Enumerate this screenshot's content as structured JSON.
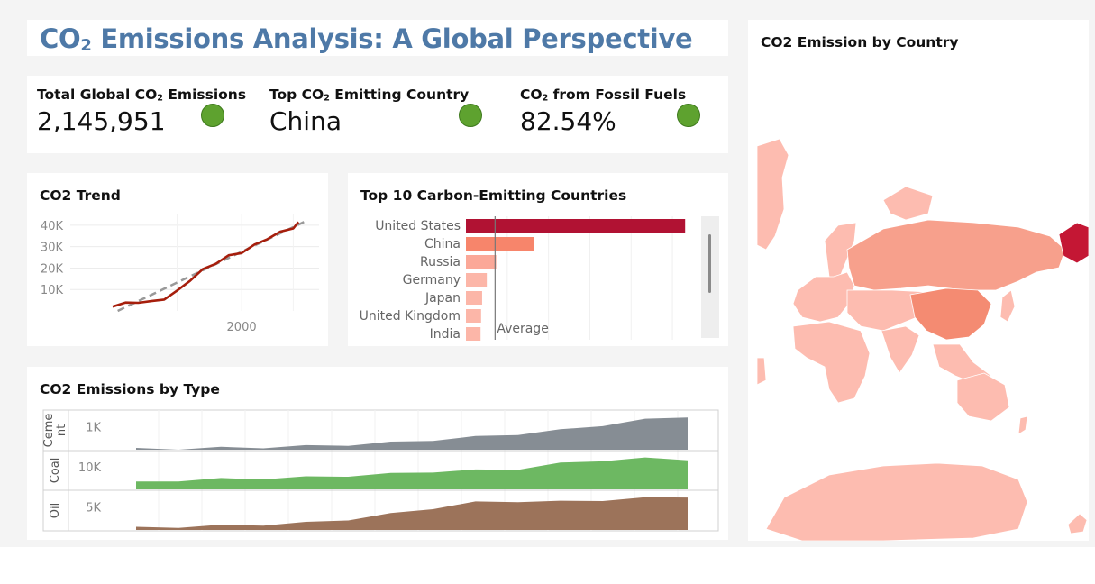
{
  "header": {
    "title_part1": "CO",
    "title_sub": "2",
    "title_part2": " Emissions Analysis: A Global Perspective"
  },
  "kpis": [
    {
      "label_pre": "Total Global CO",
      "label_sub": "2",
      "label_post": " Emissions",
      "value": "2,145,951",
      "status_color": "#5ea22f"
    },
    {
      "label_pre": "Top CO",
      "label_sub": "2",
      "label_post": " Emitting Country",
      "value": "China",
      "status_color": "#5ea22f"
    },
    {
      "label_pre": "CO",
      "label_sub": "2",
      "label_post": " from Fossil Fuels",
      "value": "82.54%",
      "status_color": "#5ea22f"
    }
  ],
  "trend": {
    "title": "CO2 Trend",
    "chart_data": {
      "type": "line",
      "y_ticks": [
        "40K",
        "30K",
        "20K",
        "10K"
      ],
      "x_ticks": [
        "2000"
      ],
      "series": [
        {
          "values_x": [
            1950,
            1955,
            1960,
            1965,
            1970,
            1975,
            1980,
            1985,
            1990,
            1995,
            2000,
            2005,
            2010,
            2015,
            2020,
            2022
          ],
          "values_y": [
            2500,
            3400,
            4300,
            4100,
            5800,
            9000,
            14500,
            19000,
            22500,
            25500,
            27500,
            30500,
            34000,
            36500,
            39000,
            41000
          ],
          "color": "#a61e0c"
        }
      ],
      "trendline": {
        "color": "#999999",
        "from": [
          1952,
          0
        ],
        "to": [
          2025,
          42000
        ]
      },
      "xlim": [
        1942,
        2030
      ],
      "ylim": [
        0,
        45000
      ]
    }
  },
  "top10": {
    "title": "Top 10 Carbon-Emitting Countries",
    "chart_data": {
      "type": "bar",
      "categories": [
        "United States",
        "China",
        "Russia",
        "Germany",
        "Japan",
        "United Kingdom",
        "India"
      ],
      "values": [
        420000,
        130000,
        58000,
        40000,
        31000,
        29000,
        28000
      ],
      "colors": [
        "#b11233",
        "#f7856b",
        "#fba898",
        "#fcb6a8",
        "#fcb6a8",
        "#fcb6a8",
        "#fcb6a8"
      ],
      "reference_line": {
        "label": "Average",
        "value": 80000
      },
      "xlim": [
        0,
        430000
      ]
    }
  },
  "by_type": {
    "title": "CO2 Emissions by Type",
    "chart_data": {
      "type": "area",
      "panels": [
        {
          "name": "Ceme nt",
          "tick": "1K",
          "color": "#868d94",
          "ymax": 1.0,
          "values": [
            0.02,
            0.03,
            0.05,
            0.07,
            0.1,
            0.14,
            0.2,
            0.28,
            0.36,
            0.45,
            0.55,
            0.7,
            0.85,
            0.95
          ]
        },
        {
          "name": "Coal",
          "tick": "10K",
          "color": "#6db862",
          "ymax": 1.0,
          "values": [
            0.2,
            0.26,
            0.3,
            0.32,
            0.35,
            0.4,
            0.45,
            0.52,
            0.55,
            0.6,
            0.75,
            0.85,
            0.9,
            0.88
          ]
        },
        {
          "name": "Oil",
          "tick": "5K",
          "color": "#9c735a",
          "ymax": 1.0,
          "values": [
            0.06,
            0.09,
            0.12,
            0.15,
            0.2,
            0.3,
            0.45,
            0.62,
            0.78,
            0.82,
            0.8,
            0.85,
            0.9,
            0.95
          ]
        }
      ]
    }
  },
  "map": {
    "title": "CO2 Emission by Country"
  }
}
